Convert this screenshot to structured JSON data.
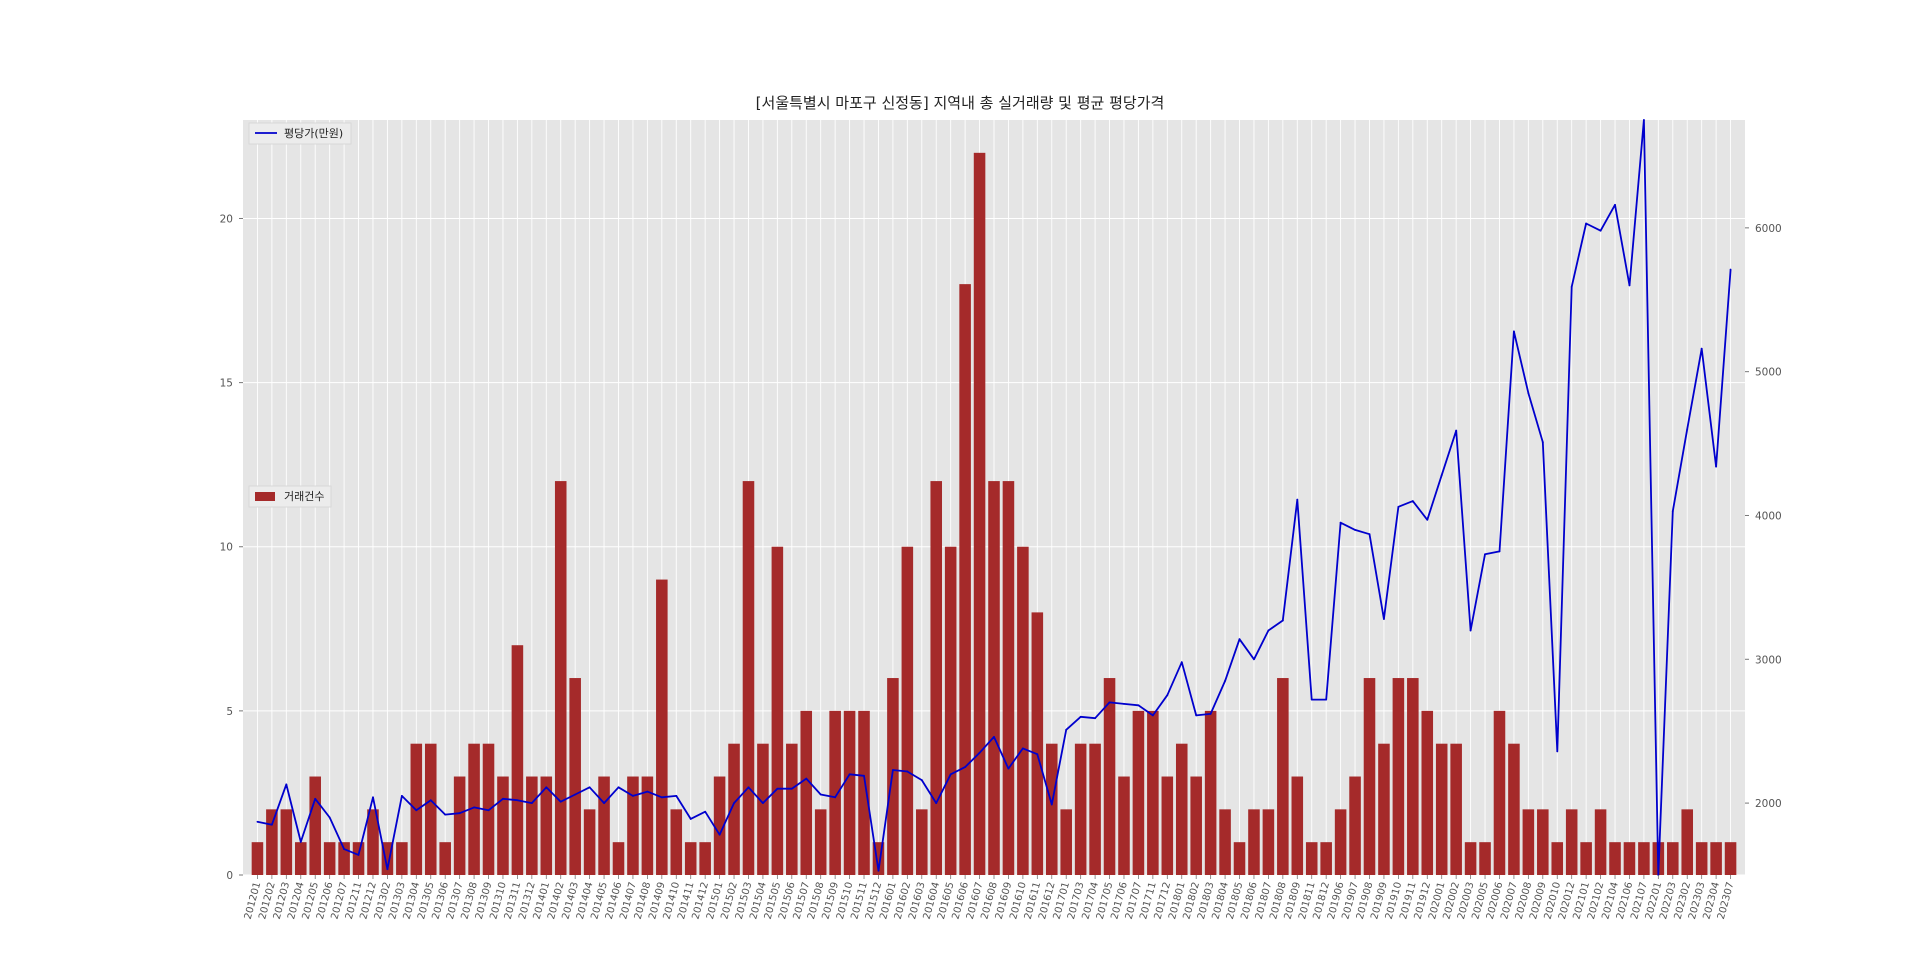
{
  "chart_data": {
    "type": "bar+line",
    "title": "[서울특별시 마포구 신정동] 지역내 총 실거래량 및 평균 평당가격",
    "x": [
      "201201",
      "201202",
      "201203",
      "201204",
      "201205",
      "201206",
      "201207",
      "201211",
      "201212",
      "201302",
      "201303",
      "201304",
      "201305",
      "201306",
      "201307",
      "201308",
      "201309",
      "201310",
      "201311",
      "201312",
      "201401",
      "201402",
      "201403",
      "201404",
      "201405",
      "201406",
      "201407",
      "201408",
      "201409",
      "201410",
      "201411",
      "201412",
      "201501",
      "201502",
      "201503",
      "201504",
      "201505",
      "201506",
      "201507",
      "201508",
      "201509",
      "201510",
      "201511",
      "201512",
      "201601",
      "201602",
      "201603",
      "201604",
      "201605",
      "201606",
      "201607",
      "201608",
      "201609",
      "201610",
      "201611",
      "201612",
      "201701",
      "201703",
      "201704",
      "201705",
      "201706",
      "201707",
      "201711",
      "201712",
      "201801",
      "201802",
      "201803",
      "201804",
      "201805",
      "201806",
      "201807",
      "201808",
      "201809",
      "201811",
      "201812",
      "201906",
      "201907",
      "201908",
      "201909",
      "201910",
      "201911",
      "201912",
      "202001",
      "202002",
      "202003",
      "202005",
      "202006",
      "202007",
      "202008",
      "202009",
      "202010",
      "202012",
      "202101",
      "202102",
      "202104",
      "202106",
      "202107",
      "202201",
      "202203",
      "202302",
      "202303",
      "202304",
      "202307"
    ],
    "series": [
      {
        "name": "거래건수",
        "type": "bar",
        "axis": "left",
        "color": "#a52a2a",
        "values": [
          1,
          2,
          2,
          1,
          3,
          1,
          1,
          1,
          2,
          1,
          1,
          4,
          4,
          1,
          3,
          4,
          4,
          3,
          7,
          3,
          3,
          12,
          6,
          2,
          3,
          1,
          3,
          3,
          9,
          2,
          1,
          1,
          3,
          4,
          12,
          4,
          10,
          4,
          5,
          2,
          5,
          5,
          5,
          1,
          6,
          10,
          2,
          12,
          10,
          18,
          22,
          12,
          12,
          10,
          8,
          4,
          2,
          4,
          4,
          6,
          3,
          5,
          5,
          3,
          4,
          3,
          5,
          2,
          1,
          2,
          2,
          6,
          3,
          1,
          1,
          2,
          3,
          6,
          4,
          6,
          6,
          5,
          4,
          4,
          1,
          1,
          5,
          4,
          2,
          2,
          1,
          2,
          1,
          2,
          1,
          1,
          1,
          1,
          1,
          2,
          1,
          1,
          1
        ]
      },
      {
        "name": "평당가(만원)",
        "type": "line",
        "axis": "right",
        "color": "#0000cd",
        "values": [
          1870,
          1850,
          2130,
          1730,
          2030,
          1900,
          1680,
          1640,
          2040,
          1540,
          2050,
          1950,
          2020,
          1920,
          1930,
          1970,
          1950,
          2030,
          2020,
          2000,
          2110,
          2010,
          2060,
          2110,
          2000,
          2110,
          2050,
          2080,
          2040,
          2050,
          1890,
          1940,
          1780,
          2000,
          2110,
          2000,
          2100,
          2100,
          2170,
          2060,
          2040,
          2200,
          2190,
          1530,
          2230,
          2220,
          2160,
          2000,
          2200,
          2250,
          2350,
          2460,
          2240,
          2380,
          2340,
          1990,
          2510,
          2600,
          2590,
          2700,
          2690,
          2680,
          2610,
          2750,
          2980,
          2610,
          2620,
          2850,
          3140,
          3000,
          3200,
          3270,
          4110,
          2720,
          2720,
          3950,
          3900,
          3870,
          3280,
          4060,
          4100,
          3970,
          4280,
          4590,
          3200,
          3730,
          3750,
          5280,
          4850,
          4510,
          2360,
          5590,
          6030,
          5980,
          6160,
          5600,
          6750,
          1500,
          4030,
          4600,
          5160,
          4340,
          5710
        ]
      }
    ],
    "y_left": {
      "lim": [
        0,
        23
      ],
      "ticks": [
        0,
        5,
        10,
        15,
        20
      ]
    },
    "y_right": {
      "lim": [
        1500,
        6750
      ],
      "ticks": [
        2000,
        3000,
        4000,
        5000,
        6000
      ]
    },
    "xlabel": "",
    "ylabel": "",
    "grid": true,
    "legend": [
      {
        "label": "평당가(만원)",
        "placement": "upper-left"
      },
      {
        "label": "거래건수",
        "placement": "center-left"
      }
    ]
  }
}
